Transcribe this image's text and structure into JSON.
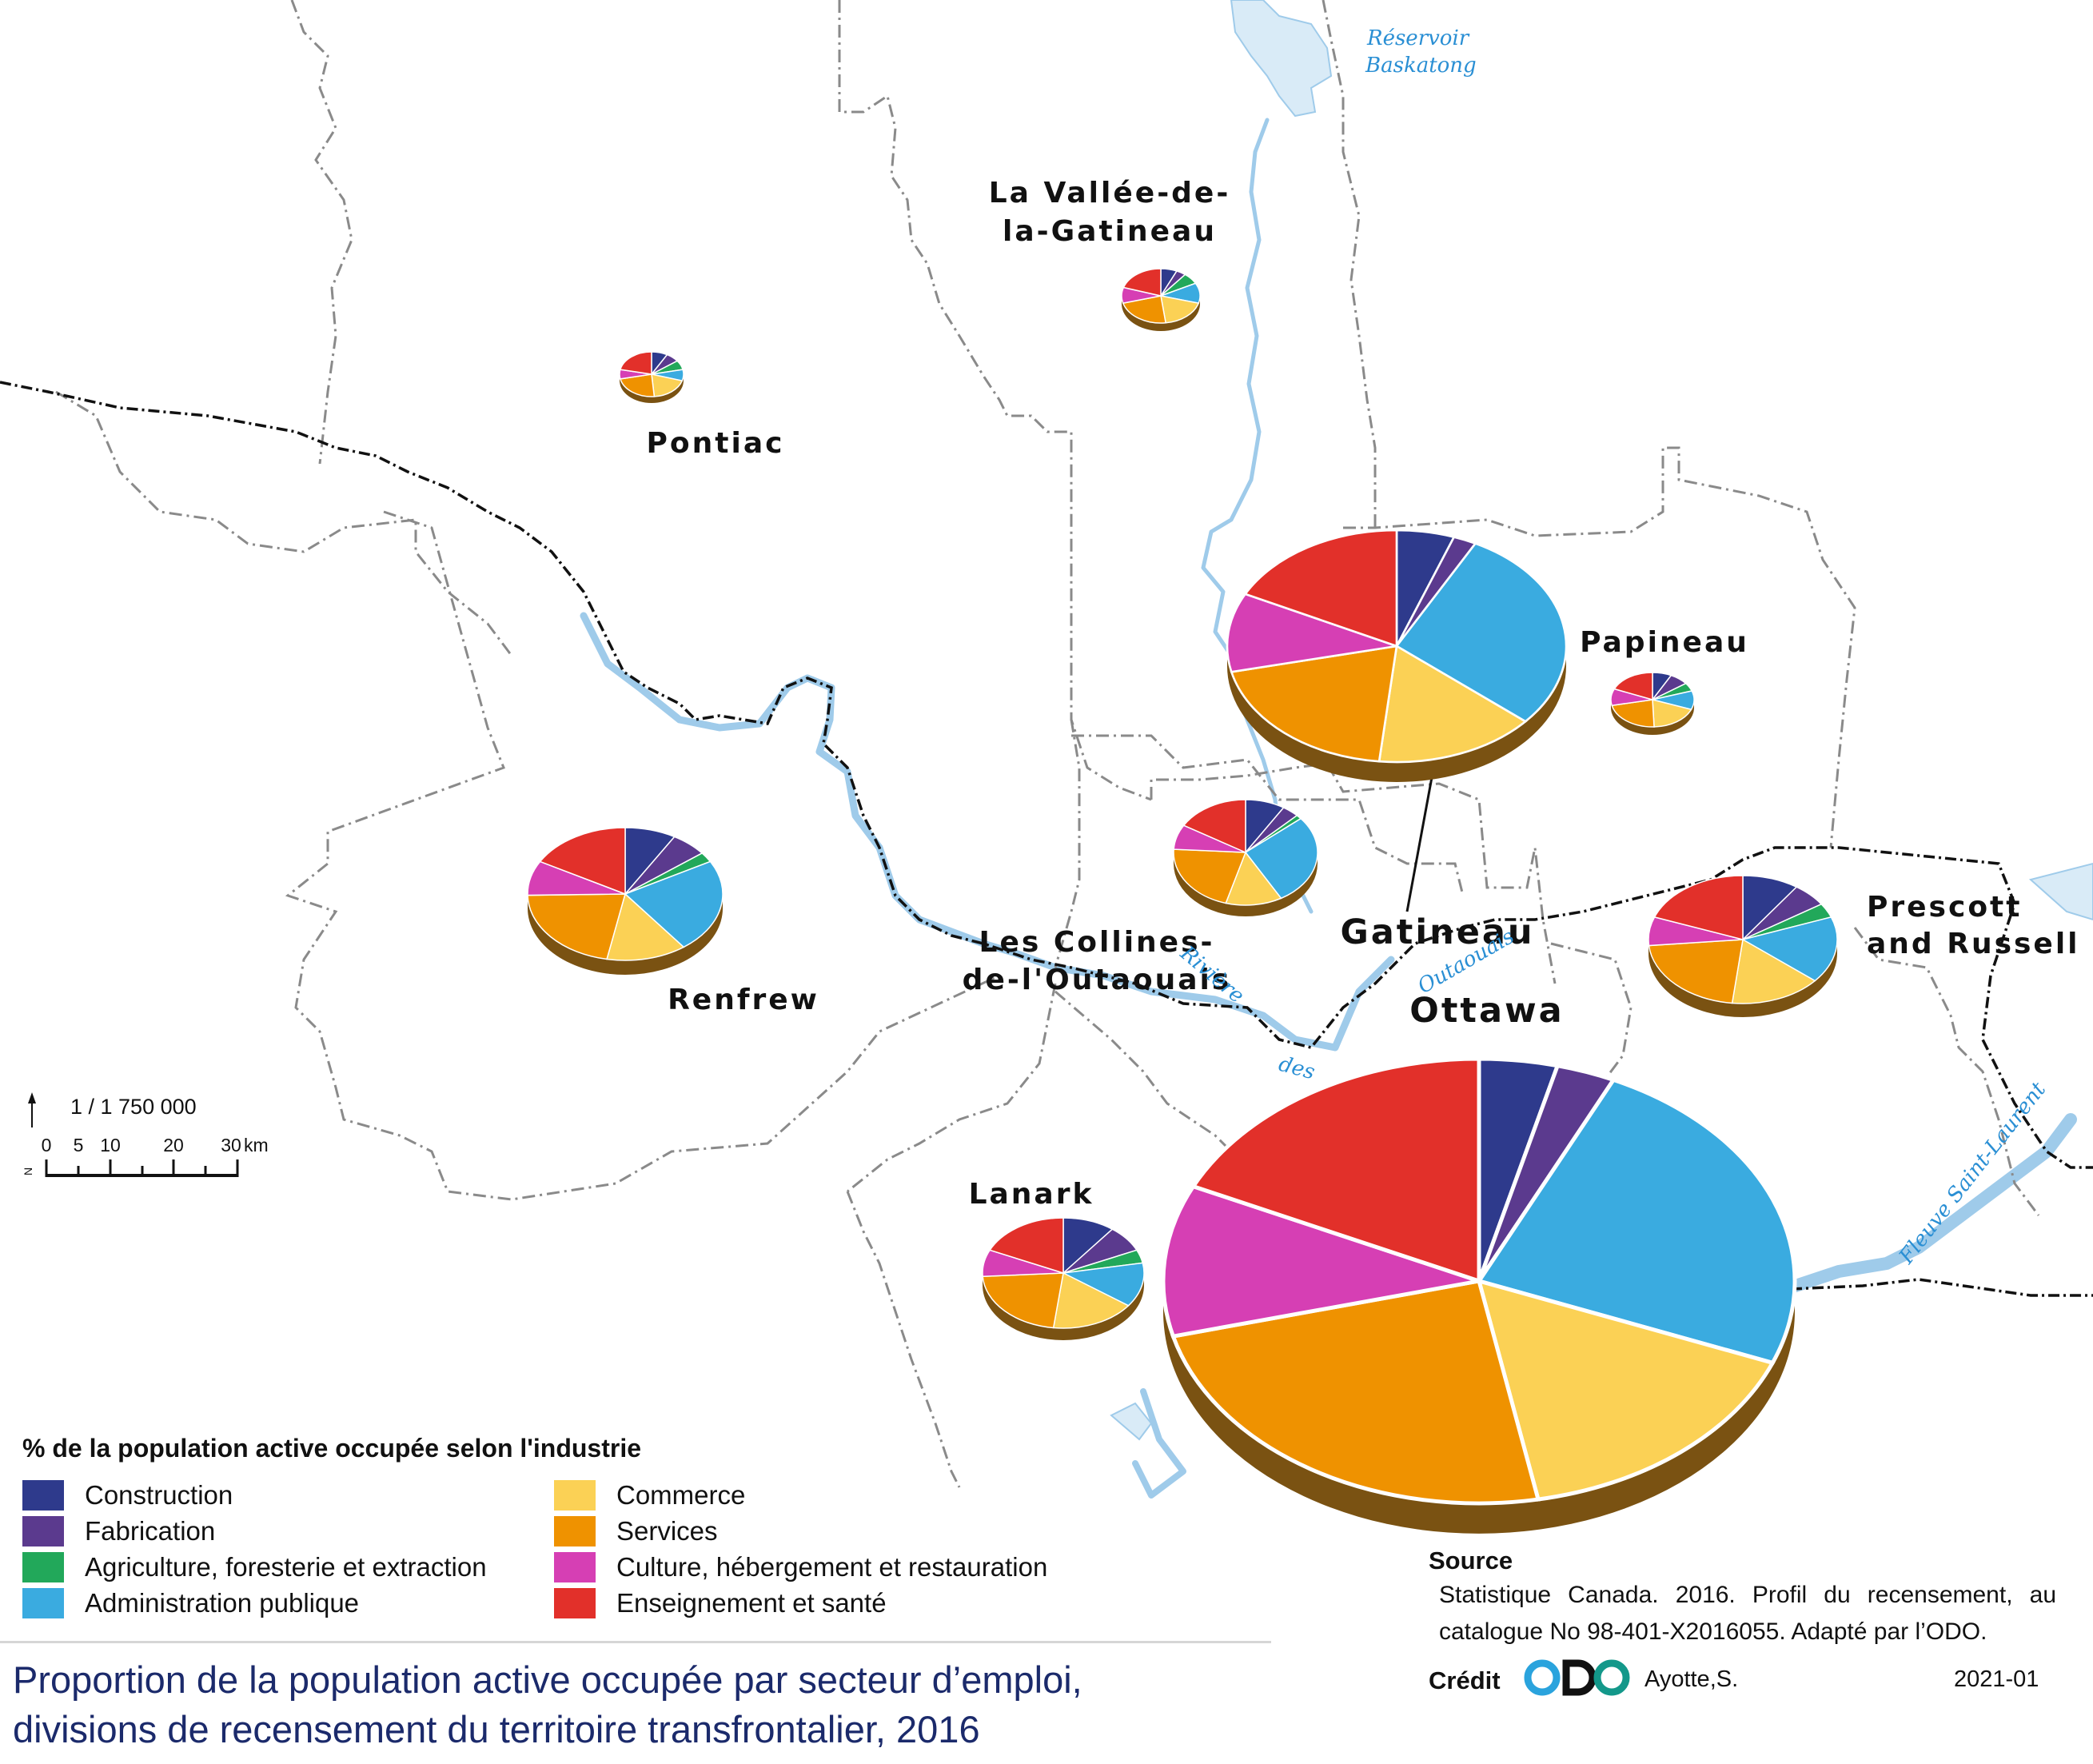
{
  "title": {
    "line1": "Proportion de la population active occupée par secteur d’emploi,",
    "line2": "divisions de recensement du territoire transfrontalier, 2016"
  },
  "legend": {
    "title": "% de la population active occupée selon l'industrie",
    "items": [
      {
        "label": "Construction",
        "color": "#2e3a8c"
      },
      {
        "label": "Fabrication",
        "color": "#5b3a8e"
      },
      {
        "label": "Agriculture, foresterie et extraction",
        "color": "#22a85a"
      },
      {
        "label": "Administration publique",
        "color": "#3aabe0"
      },
      {
        "label": "Commerce",
        "color": "#fbd155"
      },
      {
        "label": "Services",
        "color": "#ef9200"
      },
      {
        "label": "Culture, hébergement et restauration",
        "color": "#d63fb4"
      },
      {
        "label": "Enseignement et santé",
        "color": "#e2302a"
      }
    ]
  },
  "regions": {
    "pontiac": "Pontiac",
    "vallee_line1": "La Vallée-de-",
    "vallee_line2": "la-Gatineau",
    "papineau": "Papineau",
    "collines_line1": "Les Collines-",
    "collines_line2": "de-l'Outaouais",
    "gatineau": "Gatineau",
    "ottawa": "Ottawa",
    "prescott_line1": "Prescott",
    "prescott_line2": "and Russell",
    "renfrew": "Renfrew",
    "lanark": "Lanark"
  },
  "water": {
    "reservoir_line1": "Réservoir",
    "reservoir_line2": "Baskatong",
    "riviere": "Rivière",
    "des": "des",
    "outaouais": "Outaouais",
    "fleuve": "Fleuve Saint-Laurent"
  },
  "scale": {
    "ratio": "1 / 1 750 000",
    "ticks": [
      "0",
      "5",
      "10",
      "20",
      "30"
    ],
    "unit": "km",
    "north": "N"
  },
  "source": {
    "heading": "Source",
    "text": "Statistique Canada. 2016. Profil du recensement, au catalogue No 98-401-X2016055. Adapté par l’ODO."
  },
  "credit": {
    "label": "Crédit",
    "logo_text": "ODO",
    "author": "Ayotte,S.",
    "date": "2021-01"
  },
  "chart_data": {
    "type": "pie",
    "categories": [
      "Construction",
      "Fabrication",
      "Agriculture, foresterie et extraction",
      "Administration publique",
      "Commerce",
      "Services",
      "Culture, hébergement et restauration",
      "Enseignement et santé"
    ],
    "series": [
      {
        "name": "Pontiac",
        "values": [
          6,
          5,
          5,
          6,
          14,
          17,
          5,
          16
        ]
      },
      {
        "name": "La Vallée-de-la-Gatineau",
        "values": [
          5,
          3,
          5,
          9,
          14,
          17,
          7,
          15
        ]
      },
      {
        "name": "Papineau",
        "values": [
          6,
          6,
          4,
          9,
          15,
          18,
          8,
          15
        ]
      },
      {
        "name": "Renfrew",
        "values": [
          7,
          5,
          2,
          19,
          11,
          18,
          7,
          14
        ]
      },
      {
        "name": "Gatineau",
        "values": [
          5,
          2,
          0,
          26,
          14,
          18,
          10,
          16
        ]
      },
      {
        "name": "Les Collines-de-l'Outaouais",
        "values": [
          7,
          3,
          1,
          22,
          10,
          17,
          6,
          13
        ]
      },
      {
        "name": "Prescott and Russell",
        "values": [
          8,
          5,
          3,
          14,
          13,
          18,
          6,
          16
        ]
      },
      {
        "name": "Lanark",
        "values": [
          8,
          6,
          3,
          10,
          13,
          17,
          6,
          14
        ]
      },
      {
        "name": "Ottawa",
        "values": [
          4,
          3,
          0,
          24,
          16,
          24,
          11,
          18
        ]
      }
    ]
  }
}
